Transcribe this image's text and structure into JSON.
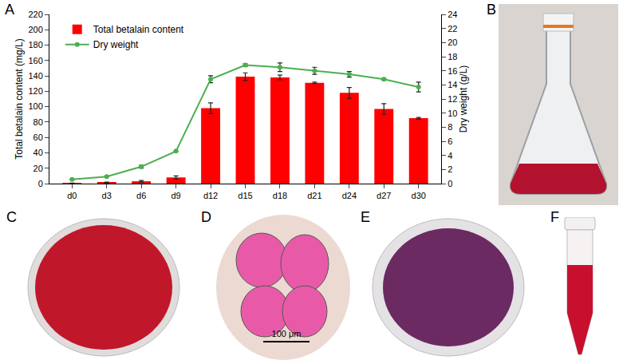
{
  "chart_data": {
    "type": "bar",
    "categories": [
      "d0",
      "d3",
      "d6",
      "d9",
      "d12",
      "d15",
      "d18",
      "d21",
      "d24",
      "d27",
      "d30"
    ],
    "ylabel": "Total betalain content (mg/L)",
    "y2label": "Dry weight (g/L)",
    "ylim": [
      0,
      220
    ],
    "yticks": [
      0,
      20,
      40,
      60,
      80,
      100,
      120,
      140,
      160,
      180,
      200,
      220
    ],
    "y2lim": [
      0,
      24
    ],
    "y2ticks": [
      0,
      2,
      4,
      6,
      8,
      10,
      12,
      14,
      16,
      18,
      20,
      22,
      24
    ],
    "legend": "upper left",
    "series": [
      {
        "name": "Total betalain content",
        "type": "bar",
        "color": "#ff0000",
        "values": [
          0.5,
          1.5,
          3,
          8,
          98,
          139,
          138,
          131,
          118,
          97,
          85
        ],
        "errors": [
          0.3,
          0.5,
          1,
          2,
          7,
          5,
          3,
          1,
          7,
          7,
          1
        ]
      },
      {
        "name": "Dry weight",
        "type": "line",
        "color": "#4caf50",
        "marker": "circle",
        "axis": "y2",
        "values": [
          0.6,
          1.0,
          2.4,
          4.6,
          14.8,
          16.8,
          16.5,
          16.0,
          15.5,
          14.8,
          13.7
        ],
        "errors": [
          0,
          0,
          0.2,
          0,
          0.5,
          0.2,
          0.6,
          0.5,
          0.4,
          0.1,
          0.7
        ]
      }
    ]
  },
  "figure": {
    "panel_labels": [
      "A",
      "B",
      "C",
      "D",
      "E",
      "F"
    ],
    "scale_bar": "100 μm"
  }
}
